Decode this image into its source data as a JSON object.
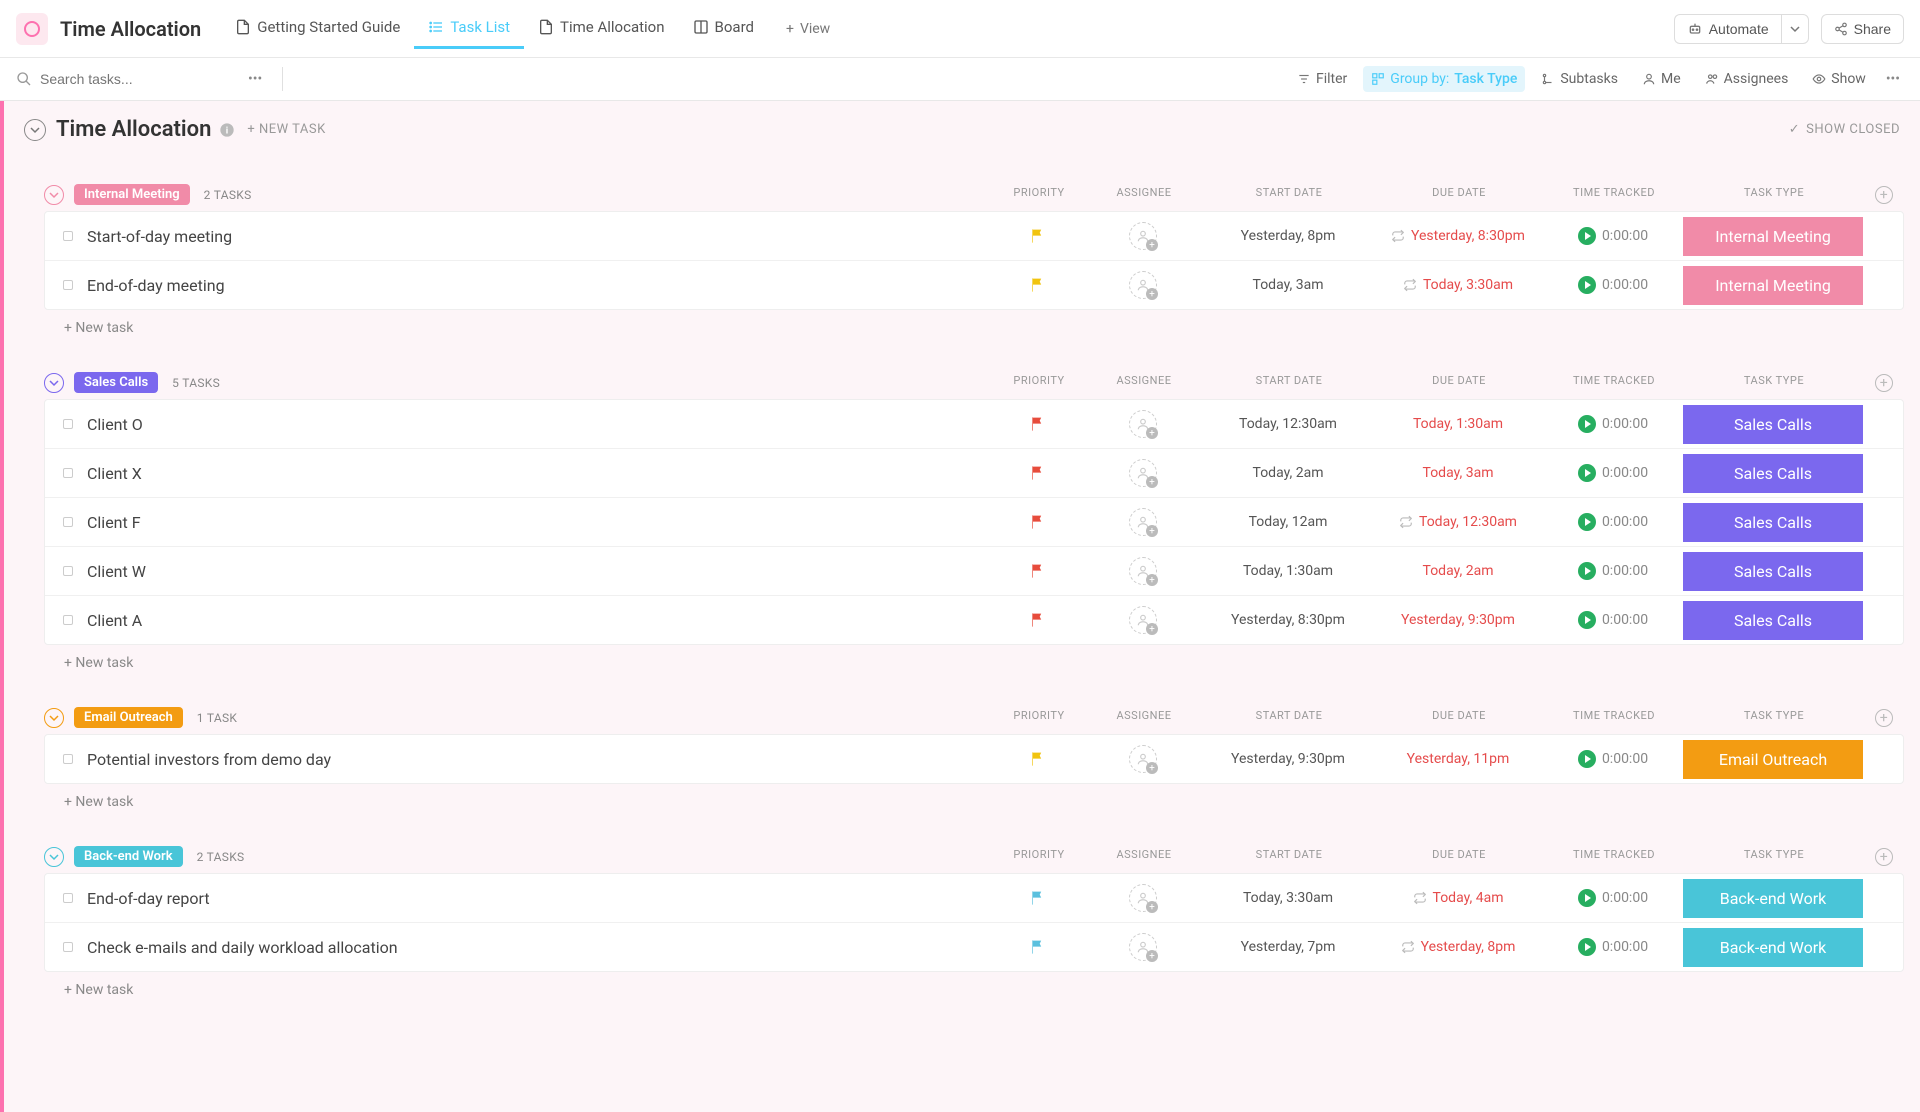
{
  "header": {
    "page_title": "Time Allocation",
    "tabs": [
      {
        "label": "Getting Started Guide",
        "icon": "doc"
      },
      {
        "label": "Task List",
        "icon": "list",
        "active": true
      },
      {
        "label": "Time Allocation",
        "icon": "doc"
      },
      {
        "label": "Board",
        "icon": "board"
      }
    ],
    "add_view": "View",
    "automate": "Automate",
    "share": "Share"
  },
  "toolbar": {
    "search_placeholder": "Search tasks...",
    "filter": "Filter",
    "group_by_label": "Group by:",
    "group_by_value": "Task Type",
    "subtasks": "Subtasks",
    "me": "Me",
    "assignees": "Assignees",
    "show": "Show"
  },
  "list": {
    "title": "Time Allocation",
    "new_task": "+ NEW TASK",
    "show_closed": "SHOW CLOSED",
    "columns": {
      "priority": "PRIORITY",
      "assignee": "ASSIGNEE",
      "start": "START DATE",
      "due": "DUE DATE",
      "tracked": "TIME TRACKED",
      "type": "TASK TYPE"
    },
    "new_task_row": "+ New task"
  },
  "colors": {
    "internal_meeting": "#f18ba8",
    "sales_calls": "#7b68ee",
    "email_outreach": "#f39c12",
    "backend_work": "#49c5d8",
    "flag_yellow": "#f1c40f",
    "flag_red": "#e74c3c",
    "flag_blue": "#5bc0de"
  },
  "groups": [
    {
      "id": "g0",
      "name": "Internal Meeting",
      "color": "#f18ba8",
      "count": "2 TASKS",
      "tasks": [
        {
          "name": "Start-of-day meeting",
          "flag": "#f1c40f",
          "start": "Yesterday, 8pm",
          "due": "Yesterday, 8:30pm",
          "due_overdue": true,
          "recur": true,
          "time": "0:00:00",
          "type": "Internal Meeting"
        },
        {
          "name": "End-of-day meeting",
          "flag": "#f1c40f",
          "start": "Today, 3am",
          "due": "Today, 3:30am",
          "due_overdue": true,
          "recur": true,
          "time": "0:00:00",
          "type": "Internal Meeting"
        }
      ]
    },
    {
      "id": "g1",
      "name": "Sales Calls",
      "color": "#7b68ee",
      "count": "5 TASKS",
      "tasks": [
        {
          "name": "Client O",
          "flag": "#e74c3c",
          "start": "Today, 12:30am",
          "due": "Today, 1:30am",
          "due_overdue": true,
          "recur": false,
          "time": "0:00:00",
          "type": "Sales Calls"
        },
        {
          "name": "Client X",
          "flag": "#e74c3c",
          "start": "Today, 2am",
          "due": "Today, 3am",
          "due_overdue": true,
          "recur": false,
          "time": "0:00:00",
          "type": "Sales Calls"
        },
        {
          "name": "Client F",
          "flag": "#e74c3c",
          "start": "Today, 12am",
          "due": "Today, 12:30am",
          "due_overdue": true,
          "recur": true,
          "time": "0:00:00",
          "type": "Sales Calls"
        },
        {
          "name": "Client W",
          "flag": "#e74c3c",
          "start": "Today, 1:30am",
          "due": "Today, 2am",
          "due_overdue": true,
          "recur": false,
          "time": "0:00:00",
          "type": "Sales Calls"
        },
        {
          "name": "Client A",
          "flag": "#e74c3c",
          "start": "Yesterday, 8:30pm",
          "due": "Yesterday, 9:30pm",
          "due_overdue": true,
          "recur": false,
          "time": "0:00:00",
          "type": "Sales Calls"
        }
      ]
    },
    {
      "id": "g2",
      "name": "Email Outreach",
      "color": "#f39c12",
      "count": "1 TASK",
      "tasks": [
        {
          "name": "Potential investors from demo day",
          "flag": "#f1c40f",
          "start": "Yesterday, 9:30pm",
          "due": "Yesterday, 11pm",
          "due_overdue": true,
          "recur": false,
          "time": "0:00:00",
          "type": "Email Outreach"
        }
      ]
    },
    {
      "id": "g3",
      "name": "Back-end Work",
      "color": "#49c5d8",
      "count": "2 TASKS",
      "tasks": [
        {
          "name": "End-of-day report",
          "flag": "#5bc0de",
          "start": "Today, 3:30am",
          "due": "Today, 4am",
          "due_overdue": true,
          "recur": true,
          "time": "0:00:00",
          "type": "Back-end Work"
        },
        {
          "name": "Check e-mails and daily workload allocation",
          "flag": "#5bc0de",
          "start": "Yesterday, 7pm",
          "due": "Yesterday, 8pm",
          "due_overdue": true,
          "recur": true,
          "time": "0:00:00",
          "type": "Back-end Work"
        }
      ]
    }
  ]
}
